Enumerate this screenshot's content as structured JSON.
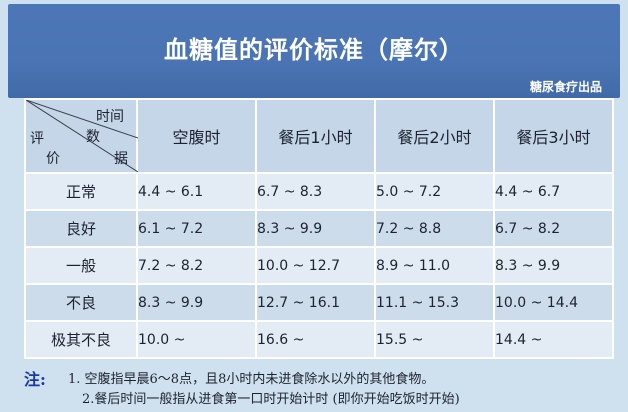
{
  "header": {
    "title": "血糖值的评价标准（摩尔）",
    "source": "糖尿食疗出品"
  },
  "table": {
    "corner": {
      "top": "时间",
      "mid": "数",
      "left1": "评",
      "left2": "价",
      "right": "据"
    },
    "columns": [
      "空腹时",
      "餐后1小时",
      "餐后2小时",
      "餐后3小时"
    ],
    "rows": [
      {
        "label": "正常",
        "values": [
          "4.4 ~ 6.1",
          "6.7 ~ 8.3",
          "5.0 ~ 7.2",
          "4.4 ~ 6.7"
        ]
      },
      {
        "label": "良好",
        "values": [
          "6.1 ~ 7.2",
          "8.3 ~ 9.9",
          "7.2 ~ 8.8",
          "6.7 ~ 8.2"
        ]
      },
      {
        "label": "一般",
        "values": [
          "7.2 ~ 8.2",
          "10.0 ~ 12.7",
          "8.9 ~ 11.0",
          "8.3 ~ 9.9"
        ]
      },
      {
        "label": "不良",
        "values": [
          "8.3 ~ 9.9",
          "12.7 ~ 16.1",
          "11.1 ~ 15.3",
          "10.0 ~ 14.4"
        ]
      },
      {
        "label": "极其不良",
        "values": [
          "10.0 ~",
          "16.6 ~",
          "15.5 ~",
          "14.4 ~"
        ]
      }
    ]
  },
  "notes": {
    "label": "注:",
    "items": [
      "1. 空腹指早晨6～8点，且8小时内未进食除水以外的其他食物。",
      "2.餐后时间一般指从进食第一口时开始计时 (即你开始吃饭时开始)"
    ]
  }
}
